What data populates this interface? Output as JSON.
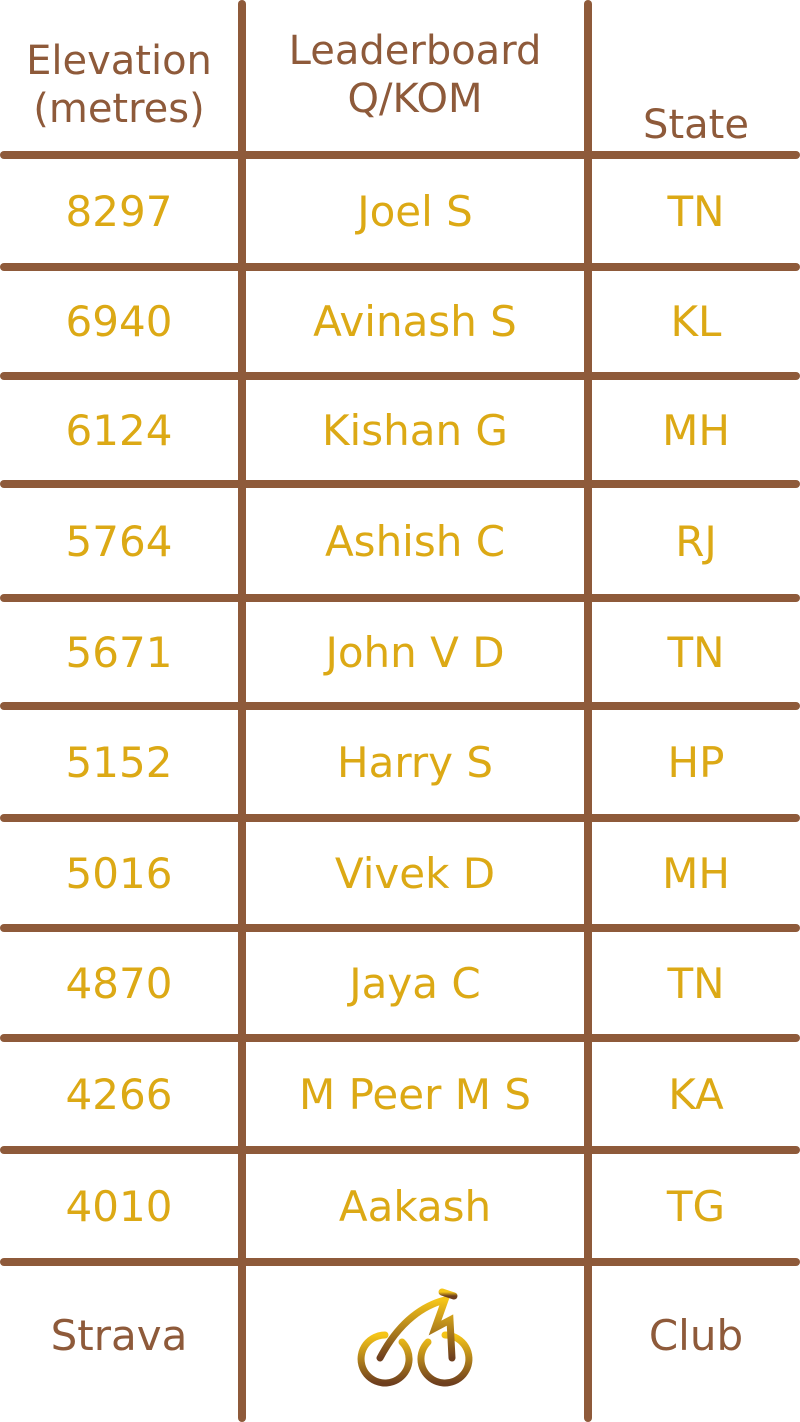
{
  "header": {
    "elevation": "Elevation\n(metres)",
    "leaderboard": "Leaderboard\nQ/KOM",
    "state": "State"
  },
  "rows": [
    {
      "elevation": "8297",
      "name": "Joel S",
      "state": "TN"
    },
    {
      "elevation": "6940",
      "name": "Avinash S",
      "state": "KL"
    },
    {
      "elevation": "6124",
      "name": "Kishan G",
      "state": "MH"
    },
    {
      "elevation": "5764",
      "name": "Ashish C",
      "state": "RJ"
    },
    {
      "elevation": "5671",
      "name": "John V D",
      "state": "TN"
    },
    {
      "elevation": "5152",
      "name": "Harry S",
      "state": "HP"
    },
    {
      "elevation": "5016",
      "name": "Vivek D",
      "state": "MH"
    },
    {
      "elevation": "4870",
      "name": "Jaya C",
      "state": "TN"
    },
    {
      "elevation": "4266",
      "name": "M Peer M S",
      "state": "KA"
    },
    {
      "elevation": "4010",
      "name": "Aakash",
      "state": "TG"
    }
  ],
  "footer": {
    "left": "Strava",
    "icon": "bicycle-icon",
    "right": "Club"
  },
  "colors": {
    "lines": "#8E5A3A",
    "header_text": "#8E5A3A",
    "value_text": "#DCA915"
  }
}
